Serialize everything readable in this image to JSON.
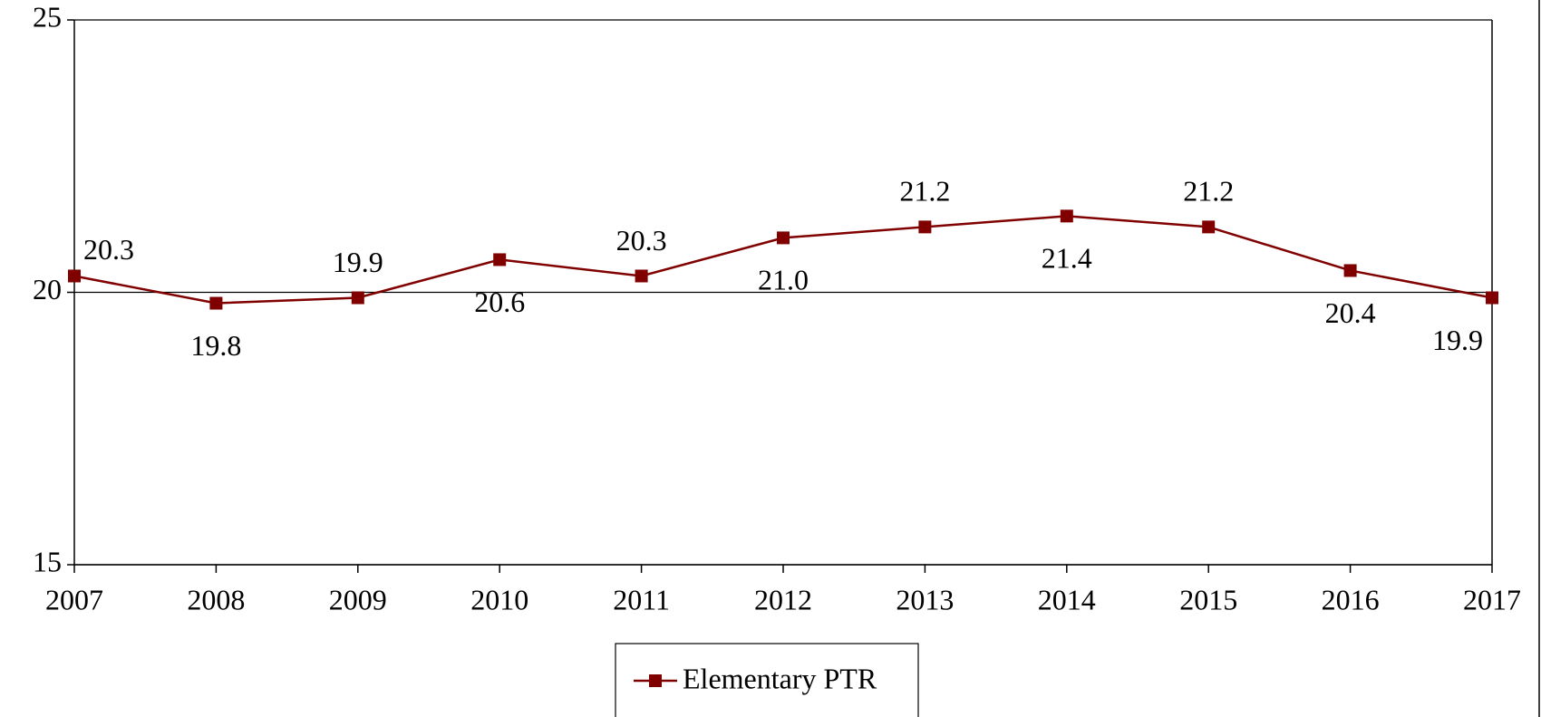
{
  "chart_data": {
    "type": "line",
    "categories": [
      "2007",
      "2008",
      "2009",
      "2010",
      "2011",
      "2012",
      "2013",
      "2014",
      "2015",
      "2016",
      "2017"
    ],
    "series": [
      {
        "name": "Elementary PTR",
        "color": "#800000",
        "values": [
          20.3,
          19.8,
          19.9,
          20.6,
          20.3,
          21.0,
          21.2,
          21.4,
          21.2,
          20.4,
          19.9
        ],
        "value_labels": [
          "20.3",
          "19.8",
          "19.9",
          "20.6",
          "20.3",
          "21.0",
          "21.2",
          "21.4",
          "21.2",
          "20.4",
          "19.9"
        ]
      }
    ],
    "ylim": [
      15,
      25
    ],
    "yticks": [
      15,
      20,
      25
    ],
    "grid": true,
    "legend": "bottom"
  }
}
